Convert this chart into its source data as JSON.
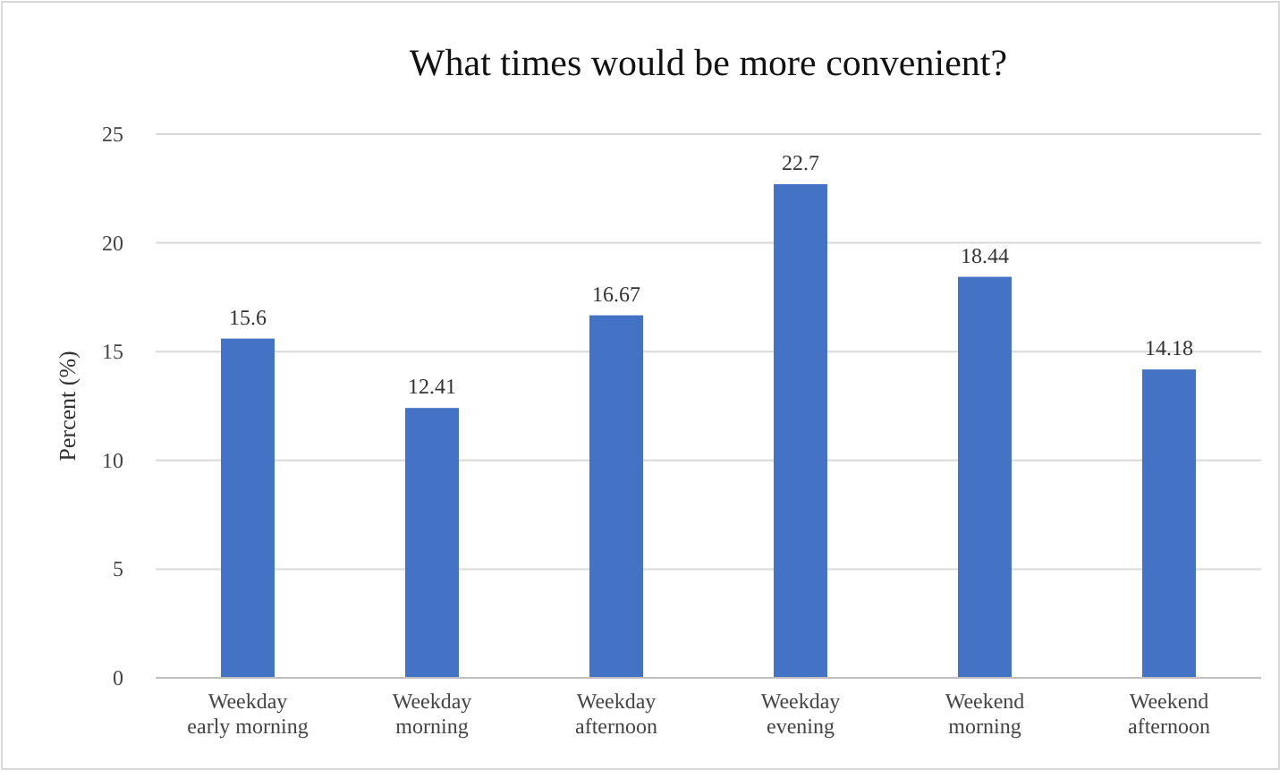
{
  "chart_data": {
    "type": "bar",
    "title": "What times would be more convenient?",
    "ylabel": "Percent (%)",
    "categories": [
      "Weekday early morning",
      "Weekday morning",
      "Weekday afternoon",
      "Weekday evening",
      "Weekend morning",
      "Weekend afternoon"
    ],
    "values": [
      15.6,
      12.41,
      16.67,
      22.7,
      18.44,
      14.18
    ],
    "color": "#4472c4",
    "ylim": [
      0,
      25
    ],
    "yticks": [
      0,
      5,
      10,
      15,
      20,
      25
    ],
    "grid": "y",
    "data_labels": true
  }
}
